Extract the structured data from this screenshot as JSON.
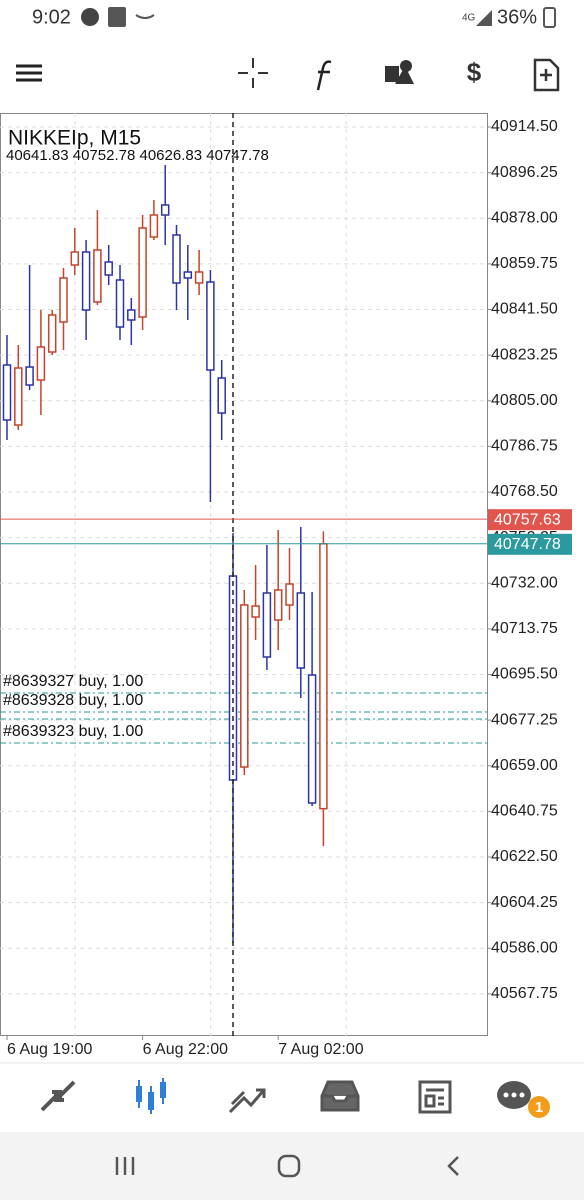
{
  "status_bar": {
    "time": "9:02",
    "network": "4G",
    "battery": "36%"
  },
  "chart_data": {
    "type": "candlestick",
    "title": "NIKKEIp, M15",
    "categories": [
      "6 Aug 19:00",
      null,
      null,
      null,
      null,
      null,
      null,
      null,
      null,
      null,
      null,
      null,
      "6 Aug 22:00",
      null,
      null,
      null,
      null,
      null,
      null,
      null,
      null,
      null,
      null,
      null,
      "7 Aug 02:00",
      null,
      null,
      null,
      null
    ],
    "open": [
      40819.3,
      40795.3,
      40818.5,
      40813.3,
      40824.5,
      40836.5,
      40859.3,
      40864.5,
      40844.5,
      40860.5,
      40853.3,
      40841.3,
      40838.5,
      40870.5,
      40883.3,
      40871.3,
      40856.5,
      40852.1,
      40852.5,
      40814.1,
      40734.9,
      40658.5,
      40718.5,
      40728.1,
      40717.3,
      40723.3,
      40728.1,
      40695.3,
      40641.83
    ],
    "high": [
      40831.3,
      40827.3,
      40859.3,
      40841.3,
      40841.3,
      40858.1,
      40874.1,
      40869.3,
      40881.3,
      40867.3,
      40859.3,
      40846.1,
      40879.3,
      40885.3,
      40899.3,
      40875.3,
      40867.3,
      40865.3,
      40857.3,
      40821.3,
      40752.1,
      40729.3,
      40739.3,
      40747.3,
      40753.3,
      40746.1,
      40754.5,
      40728.5,
      40752.78
    ],
    "low": [
      40789.3,
      40793.3,
      40809.3,
      40799.3,
      40823.3,
      40825.3,
      40855.3,
      40829.3,
      40843.3,
      40851.3,
      40829.3,
      40827.3,
      40833.3,
      40869.3,
      40867.3,
      40841.3,
      40837.3,
      40847.3,
      40764.5,
      40789.3,
      40588.1,
      40655.3,
      40709.3,
      40697.3,
      40705.3,
      40717.3,
      40686.1,
      40642.9,
      40626.83
    ],
    "close": [
      40797.3,
      40818.1,
      40811.3,
      40826.5,
      40839.3,
      40854.1,
      40864.5,
      40841.3,
      40865.3,
      40855.3,
      40834.5,
      40837.3,
      40874.1,
      40879.3,
      40879.3,
      40852.1,
      40854.1,
      40856.5,
      40817.3,
      40800.1,
      40653.3,
      40723.3,
      40722.9,
      40702.5,
      40729.3,
      40731.7,
      40698.1,
      40644.1,
      40747.78
    ],
    "up_color": "#c4442c",
    "down_color": "#2b33a6",
    "ylim": [
      40550.9,
      40920.1
    ],
    "yticks": [
      {
        "value": 40914.5,
        "label": "40914.50"
      },
      {
        "value": 40896.25,
        "label": "40896.25"
      },
      {
        "value": 40878,
        "label": "40878.00"
      },
      {
        "value": 40859.75,
        "label": "40859.75"
      },
      {
        "value": 40841.5,
        "label": "40841.50"
      },
      {
        "value": 40823.25,
        "label": "40823.25"
      },
      {
        "value": 40805,
        "label": "40805.00"
      },
      {
        "value": 40786.75,
        "label": "40786.75"
      },
      {
        "value": 40768.5,
        "label": "40768.50"
      },
      {
        "value": 40750.25,
        "label": "40750.25"
      },
      {
        "value": 40732,
        "label": "40732.00"
      },
      {
        "value": 40713.75,
        "label": "40713.75"
      },
      {
        "value": 40695.5,
        "label": "40695.50"
      },
      {
        "value": 40677.25,
        "label": "40677.25"
      },
      {
        "value": 40659,
        "label": "40659.00"
      },
      {
        "value": 40640.75,
        "label": "40640.75"
      },
      {
        "value": 40622.5,
        "label": "40622.50"
      },
      {
        "value": 40604.25,
        "label": "40604.25"
      },
      {
        "value": 40586,
        "label": "40586.00"
      },
      {
        "value": 40567.75,
        "label": "40567.75"
      }
    ],
    "grid": true,
    "price_lines": [
      {
        "value": 40757.63,
        "color": "#e0564f"
      },
      {
        "value": 40747.78,
        "color": "#2a9a9e"
      }
    ],
    "orders": [
      {
        "label": "#8639327 buy, 1.00",
        "value": 40688.1
      },
      {
        "label": "#8639328 buy, 1.00",
        "value": 40680.5
      },
      {
        "value": 40677.7
      },
      {
        "label": "#8639323 buy, 1.00",
        "value": 40668.1
      }
    ],
    "order_color": "#2a9a9e"
  },
  "bottom_nav": {
    "badge": "1"
  }
}
